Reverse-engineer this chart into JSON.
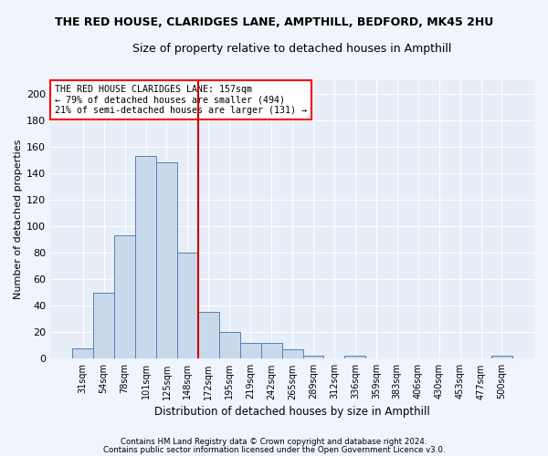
{
  "title": "THE RED HOUSE, CLARIDGES LANE, AMPTHILL, BEDFORD, MK45 2HU",
  "subtitle": "Size of property relative to detached houses in Ampthill",
  "xlabel": "Distribution of detached houses by size in Ampthill",
  "ylabel": "Number of detached properties",
  "footer1": "Contains HM Land Registry data © Crown copyright and database right 2024.",
  "footer2": "Contains public sector information licensed under the Open Government Licence v3.0.",
  "annotation_line1": "THE RED HOUSE CLARIDGES LANE: 157sqm",
  "annotation_line2": "← 79% of detached houses are smaller (494)",
  "annotation_line3": "21% of semi-detached houses are larger (131) →",
  "bar_categories": [
    "31sqm",
    "54sqm",
    "78sqm",
    "101sqm",
    "125sqm",
    "148sqm",
    "172sqm",
    "195sqm",
    "219sqm",
    "242sqm",
    "265sqm",
    "289sqm",
    "312sqm",
    "336sqm",
    "359sqm",
    "383sqm",
    "406sqm",
    "430sqm",
    "453sqm",
    "477sqm",
    "500sqm"
  ],
  "bar_values": [
    8,
    50,
    93,
    153,
    148,
    80,
    35,
    20,
    12,
    12,
    7,
    2,
    0,
    2,
    0,
    0,
    0,
    0,
    0,
    0,
    2
  ],
  "bar_color": "#c9d9ec",
  "bar_edge_color": "#5580b0",
  "vline_x": 5.5,
  "vline_color": "#cc0000",
  "bg_color": "#e8eef8",
  "grid_color": "#ffffff",
  "fig_bg_color": "#f0f4fc",
  "ylim": [
    0,
    210
  ],
  "yticks": [
    0,
    20,
    40,
    60,
    80,
    100,
    120,
    140,
    160,
    180,
    200
  ]
}
